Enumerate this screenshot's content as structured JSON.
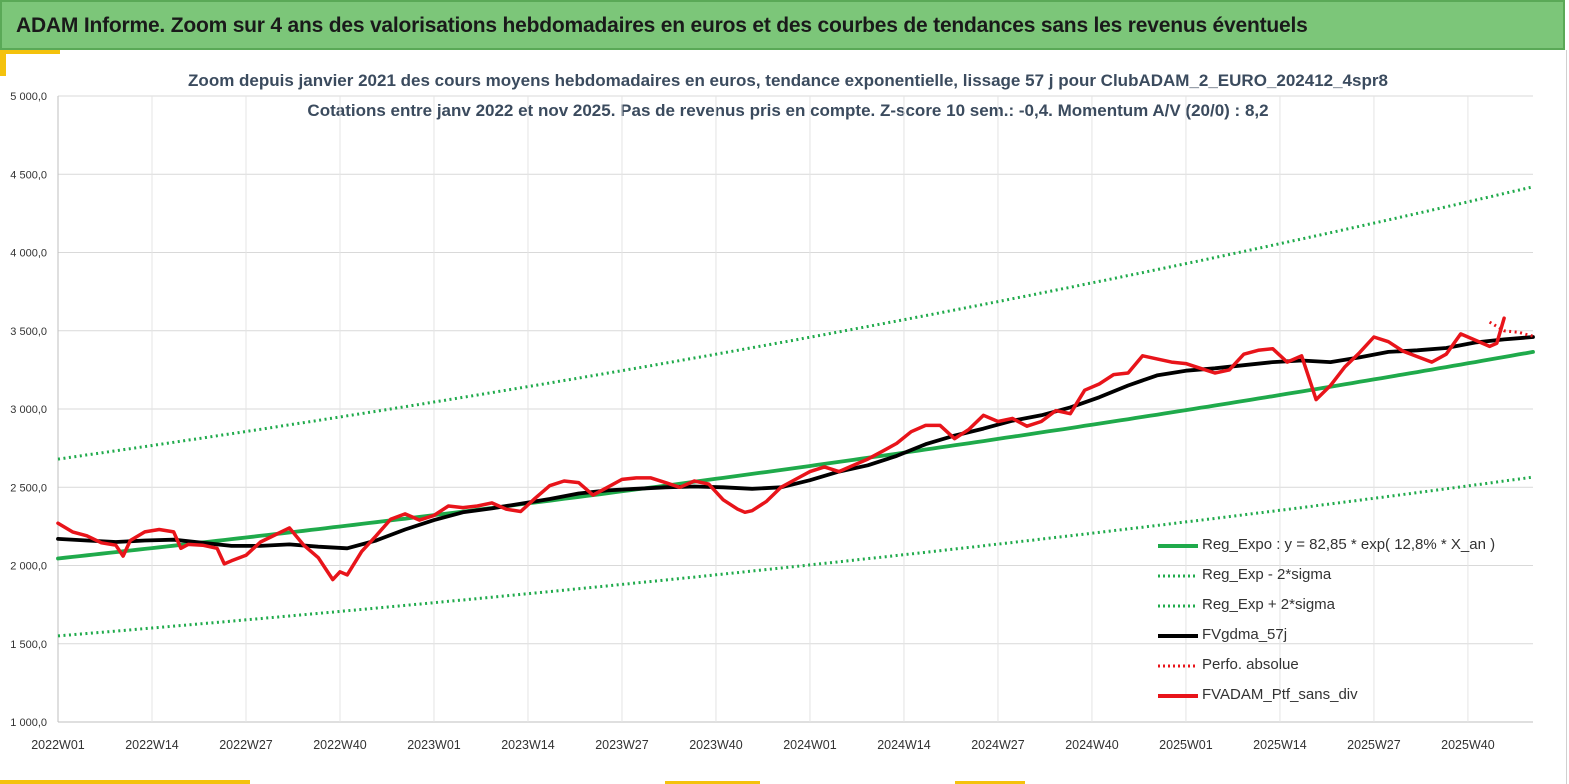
{
  "banner": {
    "title": "ADAM Informe. Zoom sur 4 ans des valorisations hebdomadaires en euros et des courbes de tendances sans les revenus éventuels"
  },
  "colors": {
    "banner_bg": "#7cc679",
    "green": "#1faa4b",
    "black": "#000000",
    "red": "#e8141a",
    "grid": "#d9d9d9",
    "accent": "#f4c20d"
  },
  "chart_data": {
    "type": "line",
    "title": "Zoom depuis janvier 2021 des cours moyens hebdomadaires en euros, tendance exponentielle, lissage 57 j pour ClubADAM_2_EURO_202412_4spr8",
    "subtitle": "Cotations entre janv 2022 et nov 2025. Pas de revenus pris en compte. Z-score 10 sem.: -0,4. Momentum A/V (20/0) : 8,2",
    "xlabel": "",
    "ylabel": "",
    "ylim": [
      1000,
      5000
    ],
    "yticks": [
      "1 000,0",
      "1 500,0",
      "2 000,0",
      "2 500,0",
      "3 000,0",
      "3 500,0",
      "4 000,0",
      "4 500,0",
      "5 000,0"
    ],
    "xticks": [
      "2022W01",
      "2022W14",
      "2022W27",
      "2022W40",
      "2023W01",
      "2023W14",
      "2023W27",
      "2023W40",
      "2024W01",
      "2024W14",
      "2024W27",
      "2024W40",
      "2025W01",
      "2025W14",
      "2025W27",
      "2025W40"
    ],
    "x_week_range": [
      0,
      204
    ],
    "grid": true,
    "legend_position": "bottom-right",
    "series": [
      {
        "name": "Reg_Expo : y = 82,85 * exp( 12,8% *  X_an )",
        "style": "solid-thick",
        "color": "#1faa4b",
        "x": [
          0,
          204
        ],
        "values": [
          2045,
          3365
        ],
        "curve": "exponential"
      },
      {
        "name": "Reg_Exp - 2*sigma",
        "style": "dotted",
        "color": "#1faa4b",
        "x": [
          0,
          204
        ],
        "values": [
          1550,
          2565
        ],
        "curve": "exponential"
      },
      {
        "name": "Reg_Exp + 2*sigma",
        "style": "dotted",
        "color": "#1faa4b",
        "x": [
          0,
          204
        ],
        "values": [
          2680,
          4420
        ],
        "curve": "exponential"
      },
      {
        "name": "FVgdma_57j",
        "style": "solid-thick",
        "color": "#000000",
        "x": [
          0,
          4,
          8,
          12,
          16,
          20,
          24,
          28,
          32,
          36,
          40,
          44,
          48,
          52,
          56,
          60,
          64,
          68,
          72,
          76,
          80,
          84,
          88,
          92,
          96,
          100,
          104,
          108,
          112,
          116,
          120,
          124,
          128,
          132,
          136,
          140,
          144,
          148,
          152,
          156,
          160,
          164,
          168,
          172,
          176,
          180,
          184,
          188,
          192,
          196,
          200,
          204
        ],
        "values": [
          2170,
          2160,
          2150,
          2160,
          2165,
          2145,
          2125,
          2125,
          2135,
          2120,
          2110,
          2160,
          2230,
          2290,
          2340,
          2365,
          2395,
          2425,
          2460,
          2480,
          2490,
          2500,
          2505,
          2500,
          2490,
          2500,
          2545,
          2600,
          2640,
          2700,
          2775,
          2830,
          2875,
          2925,
          2960,
          3010,
          3075,
          3150,
          3215,
          3245,
          3260,
          3280,
          3300,
          3310,
          3300,
          3330,
          3365,
          3375,
          3390,
          3425,
          3445,
          3460
        ]
      },
      {
        "name": "Perfo. absolue",
        "style": "dotted",
        "color": "#e8141a",
        "x": [
          198,
          200,
          202,
          204
        ],
        "values": [
          3555,
          3500,
          3490,
          3465
        ]
      },
      {
        "name": "FVADAM_Ptf_sans_div",
        "style": "solid-thick",
        "color": "#e8141a",
        "x": [
          0,
          2,
          4,
          6,
          8,
          9,
          10,
          12,
          14,
          16,
          17,
          18,
          20,
          22,
          23,
          24,
          26,
          28,
          30,
          32,
          34,
          36,
          37,
          38,
          39,
          40,
          42,
          44,
          46,
          48,
          50,
          52,
          54,
          56,
          58,
          60,
          62,
          64,
          66,
          68,
          70,
          72,
          74,
          76,
          78,
          80,
          82,
          84,
          86,
          88,
          90,
          92,
          94,
          95,
          96,
          98,
          100,
          102,
          104,
          106,
          108,
          110,
          112,
          114,
          116,
          118,
          120,
          122,
          124,
          126,
          128,
          130,
          132,
          134,
          136,
          138,
          140,
          142,
          144,
          146,
          148,
          150,
          152,
          154,
          156,
          158,
          160,
          162,
          164,
          166,
          168,
          170,
          172,
          173,
          174,
          176,
          178,
          180,
          182,
          184,
          186,
          188,
          190,
          192,
          194,
          196,
          198,
          199,
          200
        ],
        "values": [
          2270,
          2215,
          2190,
          2145,
          2130,
          2060,
          2160,
          2215,
          2230,
          2215,
          2110,
          2135,
          2130,
          2110,
          2010,
          2030,
          2065,
          2150,
          2195,
          2240,
          2130,
          2050,
          1980,
          1910,
          1960,
          1940,
          2090,
          2190,
          2295,
          2330,
          2290,
          2320,
          2380,
          2370,
          2380,
          2400,
          2360,
          2345,
          2430,
          2510,
          2540,
          2530,
          2450,
          2500,
          2550,
          2560,
          2560,
          2530,
          2500,
          2540,
          2520,
          2420,
          2360,
          2340,
          2350,
          2410,
          2500,
          2550,
          2600,
          2630,
          2600,
          2640,
          2680,
          2730,
          2780,
          2855,
          2895,
          2895,
          2810,
          2870,
          2960,
          2920,
          2940,
          2890,
          2920,
          2990,
          2970,
          3120,
          3160,
          3220,
          3230,
          3340,
          3320,
          3300,
          3290,
          3260,
          3230,
          3250,
          3350,
          3375,
          3385,
          3300,
          3340,
          3200,
          3060,
          3150,
          3270,
          3360,
          3460,
          3430,
          3370,
          3335,
          3300,
          3350,
          3480,
          3440,
          3400,
          3420,
          3580
        ]
      }
    ]
  }
}
